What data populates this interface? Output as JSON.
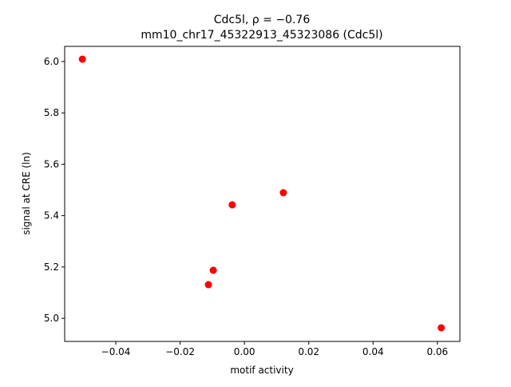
{
  "chart_data": {
    "type": "scatter",
    "title": [
      "Cdc5l, ρ = −0.76",
      "mm10_chr17_45322913_45323086 (Cdc5l)"
    ],
    "xlabel": "motif activity",
    "ylabel": "signal at CRE (ln)",
    "x": [
      -0.0504,
      -0.0112,
      -0.0097,
      -0.0038,
      0.0121,
      0.0612
    ],
    "values": [
      6.009,
      5.131,
      5.187,
      5.442,
      5.489,
      4.963
    ],
    "color": "#ff0000",
    "xlim": [
      -0.0559,
      0.067
    ],
    "ylim": [
      4.91,
      6.059
    ],
    "xticks": [
      {
        "value": -0.04,
        "label": "−0.04"
      },
      {
        "value": -0.02,
        "label": "−0.02"
      },
      {
        "value": 0,
        "label": "0.00"
      },
      0.02,
      0.04,
      0.06
    ],
    "yticks": [
      {
        "value": 5,
        "label": "5.0"
      },
      5.2,
      5.4,
      5.6,
      5.8,
      {
        "value": 6,
        "label": "6.0"
      }
    ]
  }
}
